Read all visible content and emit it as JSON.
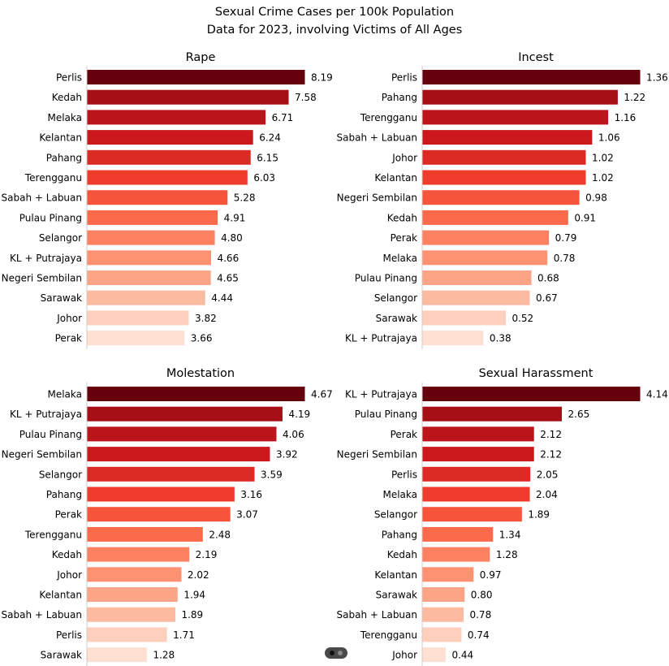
{
  "title": "Sexual Crime Cases per 100k Population",
  "subtitle": "Data for 2023, involving Victims of All Ages",
  "colors": [
    "#67000d",
    "#a50f15",
    "#cb181d",
    "#ef3b2c",
    "#fb6a4a",
    "#fc9272",
    "#fcbba1",
    "#fee0d2"
  ],
  "chart_data": [
    {
      "type": "bar",
      "orientation": "horizontal",
      "title": "Rape",
      "categories": [
        "Perlis",
        "Kedah",
        "Melaka",
        "Kelantan",
        "Pahang",
        "Terengganu",
        "Sabah + Labuan",
        "Pulau Pinang",
        "Selangor",
        "KL + Putrajaya",
        "Negeri Sembilan",
        "Sarawak",
        "Johor",
        "Perak"
      ],
      "values": [
        8.19,
        7.58,
        6.71,
        6.24,
        6.15,
        6.03,
        5.28,
        4.91,
        4.8,
        4.66,
        4.65,
        4.44,
        3.82,
        3.66
      ],
      "labels": [
        "8.19",
        "7.58",
        "6.71",
        "6.24",
        "6.15",
        "6.03",
        "5.28",
        "4.91",
        "4.80",
        "4.66",
        "4.65",
        "4.44",
        "3.82",
        "3.66"
      ],
      "xlim": [
        0,
        8.19
      ]
    },
    {
      "type": "bar",
      "orientation": "horizontal",
      "title": "Incest",
      "categories": [
        "Perlis",
        "Pahang",
        "Terengganu",
        "Sabah + Labuan",
        "Johor",
        "Kelantan",
        "Negeri Sembilan",
        "Kedah",
        "Perak",
        "Melaka",
        "Pulau Pinang",
        "Selangor",
        "Sarawak",
        "KL + Putrajaya"
      ],
      "values": [
        1.36,
        1.22,
        1.16,
        1.06,
        1.02,
        1.02,
        0.98,
        0.91,
        0.79,
        0.78,
        0.68,
        0.67,
        0.52,
        0.38
      ],
      "labels": [
        "1.36",
        "1.22",
        "1.16",
        "1.06",
        "1.02",
        "1.02",
        "0.98",
        "0.91",
        "0.79",
        "0.78",
        "0.68",
        "0.67",
        "0.52",
        "0.38"
      ],
      "xlim": [
        0,
        1.36
      ]
    },
    {
      "type": "bar",
      "orientation": "horizontal",
      "title": "Molestation",
      "categories": [
        "Melaka",
        "KL + Putrajaya",
        "Pulau Pinang",
        "Negeri Sembilan",
        "Selangor",
        "Pahang",
        "Perak",
        "Terengganu",
        "Kedah",
        "Johor",
        "Kelantan",
        "Sabah + Labuan",
        "Perlis",
        "Sarawak"
      ],
      "values": [
        4.67,
        4.19,
        4.06,
        3.92,
        3.59,
        3.16,
        3.07,
        2.48,
        2.19,
        2.02,
        1.94,
        1.89,
        1.71,
        1.28
      ],
      "labels": [
        "4.67",
        "4.19",
        "4.06",
        "3.92",
        "3.59",
        "3.16",
        "3.07",
        "2.48",
        "2.19",
        "2.02",
        "1.94",
        "1.89",
        "1.71",
        "1.28"
      ],
      "xlim": [
        0,
        4.67
      ]
    },
    {
      "type": "bar",
      "orientation": "horizontal",
      "title": "Sexual Harassment",
      "categories": [
        "KL + Putrajaya",
        "Pulau Pinang",
        "Perak",
        "Negeri Sembilan",
        "Perlis",
        "Melaka",
        "Selangor",
        "Pahang",
        "Kedah",
        "Kelantan",
        "Sarawak",
        "Sabah + Labuan",
        "Terengganu",
        "Johor"
      ],
      "values": [
        4.14,
        2.65,
        2.12,
        2.12,
        2.05,
        2.04,
        1.89,
        1.34,
        1.28,
        0.97,
        0.8,
        0.78,
        0.74,
        0.44
      ],
      "labels": [
        "4.14",
        "2.65",
        "2.12",
        "2.12",
        "2.05",
        "2.04",
        "1.89",
        "1.34",
        "1.28",
        "0.97",
        "0.80",
        "0.78",
        "0.74",
        "0.44"
      ],
      "xlim": [
        0,
        4.14
      ]
    }
  ]
}
